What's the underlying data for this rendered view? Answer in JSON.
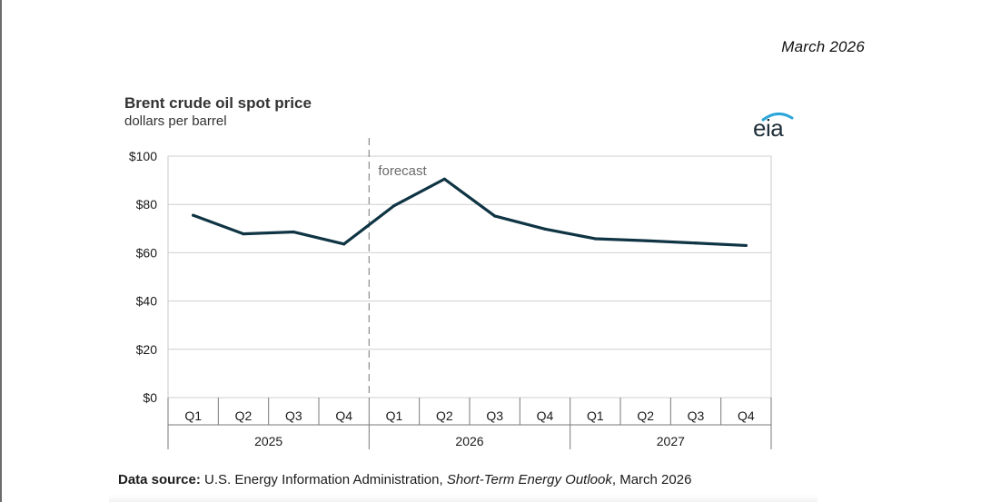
{
  "header": {
    "date": "March 2026"
  },
  "chart_data": {
    "type": "line",
    "title": "Brent crude oil spot price",
    "subtitle": "dollars per barrel",
    "ylabel": "dollars per barrel",
    "ylim": [
      0,
      100
    ],
    "y_ticks": [
      0,
      20,
      40,
      60,
      80,
      100
    ],
    "y_tick_labels": [
      "$0",
      "$20",
      "$40",
      "$60",
      "$80",
      "$100"
    ],
    "categories": [
      "Q1",
      "Q2",
      "Q3",
      "Q4",
      "Q1",
      "Q2",
      "Q3",
      "Q4",
      "Q1",
      "Q2",
      "Q3",
      "Q4"
    ],
    "years": [
      "2025",
      "2026",
      "2027"
    ],
    "series": [
      {
        "name": "Brent crude oil spot price",
        "color": "#0f3443",
        "values": [
          75.5,
          67.8,
          68.6,
          63.6,
          79.5,
          90.5,
          75.2,
          69.8,
          65.8,
          65.0,
          64.0,
          63.0
        ]
      }
    ],
    "forecast_label": "forecast",
    "forecast_start_index": 4,
    "grid": true
  },
  "logo": {
    "text": "eia",
    "accent_color": "#2aa7d8"
  },
  "source": {
    "label": "Data source:",
    "agency": "U.S. Energy Information Administration,",
    "report": "Short-Term Energy Outlook",
    "date": ", March 2026"
  }
}
